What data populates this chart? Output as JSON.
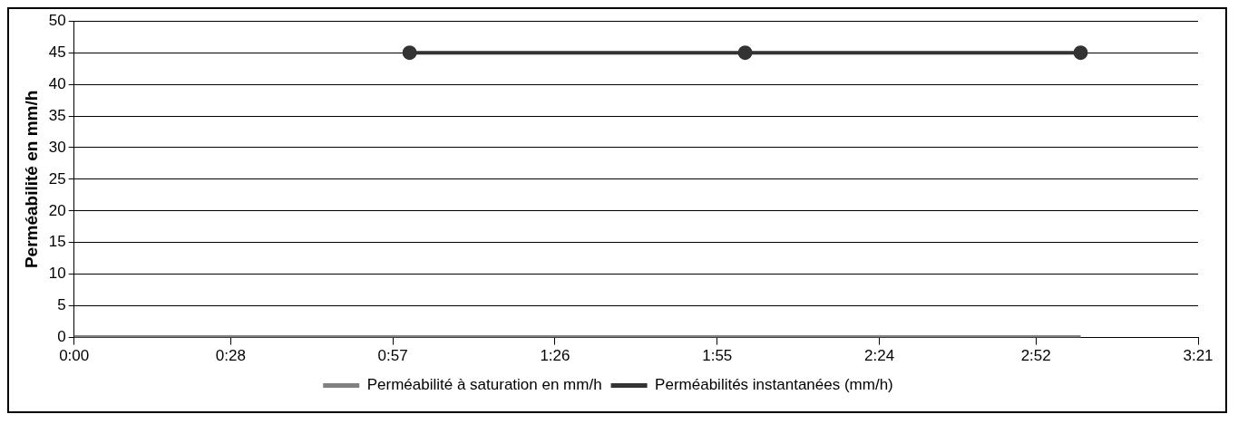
{
  "chart_data": {
    "type": "line",
    "ylabel": "Perméabilité en mm/h",
    "series": [
      {
        "name": "Perméabilité à saturation en mm/h",
        "color": "#808080",
        "x": [
          0,
          3
        ],
        "values": [
          0,
          0
        ],
        "marker": "none"
      },
      {
        "name": "Perméabilités instantanées (mm/h)",
        "color": "#333333",
        "x": [
          1,
          2,
          3
        ],
        "values": [
          45,
          45,
          45
        ],
        "marker": "circle"
      }
    ],
    "xlim": [
      0,
      3.35
    ],
    "xticks": [
      {
        "value": 0,
        "label": "0:00"
      },
      {
        "value": 0.4667,
        "label": "0:28"
      },
      {
        "value": 0.95,
        "label": "0:57"
      },
      {
        "value": 1.4333,
        "label": "1:26"
      },
      {
        "value": 1.9167,
        "label": "1:55"
      },
      {
        "value": 2.4,
        "label": "2:24"
      },
      {
        "value": 2.8667,
        "label": "2:52"
      },
      {
        "value": 3.35,
        "label": "3:21"
      }
    ],
    "ylim": [
      0,
      50
    ],
    "yticks": [
      0,
      5,
      10,
      15,
      20,
      25,
      30,
      35,
      40,
      45,
      50
    ],
    "grid": "y",
    "legend": "bottom",
    "line_style": "solid"
  }
}
